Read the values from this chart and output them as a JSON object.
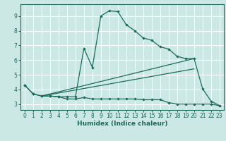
{
  "xlabel": "Humidex (Indice chaleur)",
  "bg_color": "#cce8e4",
  "grid_color": "#ffffff",
  "line_color": "#1a6b5a",
  "xlim": [
    -0.5,
    23.5
  ],
  "ylim": [
    2.6,
    9.8
  ],
  "xticks": [
    0,
    1,
    2,
    3,
    4,
    5,
    6,
    7,
    8,
    9,
    10,
    11,
    12,
    13,
    14,
    15,
    16,
    17,
    18,
    19,
    20,
    21,
    22,
    23
  ],
  "yticks": [
    3,
    4,
    5,
    6,
    7,
    8,
    9
  ],
  "series1": [
    [
      0,
      4.3
    ],
    [
      1,
      3.7
    ],
    [
      2,
      3.55
    ],
    [
      3,
      3.55
    ],
    [
      4,
      3.5
    ],
    [
      5,
      3.5
    ],
    [
      6,
      3.5
    ],
    [
      7,
      6.8
    ],
    [
      8,
      5.5
    ],
    [
      9,
      9.0
    ],
    [
      10,
      9.35
    ],
    [
      11,
      9.3
    ],
    [
      12,
      8.4
    ],
    [
      13,
      8.0
    ],
    [
      14,
      7.5
    ],
    [
      15,
      7.35
    ],
    [
      16,
      6.9
    ],
    [
      17,
      6.75
    ],
    [
      18,
      6.25
    ],
    [
      19,
      6.1
    ],
    [
      20,
      6.1
    ],
    [
      21,
      4.05
    ],
    [
      22,
      3.2
    ],
    [
      23,
      2.9
    ]
  ],
  "series2": [
    [
      0,
      4.3
    ],
    [
      1,
      3.7
    ],
    [
      2,
      3.55
    ],
    [
      3,
      3.55
    ],
    [
      4,
      3.5
    ],
    [
      5,
      3.35
    ],
    [
      6,
      3.35
    ],
    [
      7,
      3.45
    ],
    [
      8,
      3.35
    ],
    [
      9,
      3.35
    ],
    [
      10,
      3.35
    ],
    [
      11,
      3.35
    ],
    [
      12,
      3.35
    ],
    [
      13,
      3.35
    ],
    [
      14,
      3.3
    ],
    [
      15,
      3.3
    ],
    [
      16,
      3.3
    ],
    [
      17,
      3.1
    ],
    [
      18,
      3.0
    ],
    [
      19,
      3.0
    ],
    [
      20,
      3.0
    ],
    [
      21,
      3.0
    ],
    [
      22,
      3.0
    ],
    [
      23,
      2.9
    ]
  ],
  "series3": [
    [
      2,
      3.55
    ],
    [
      20,
      6.1
    ]
  ],
  "series4": [
    [
      2,
      3.55
    ],
    [
      20,
      5.4
    ]
  ]
}
